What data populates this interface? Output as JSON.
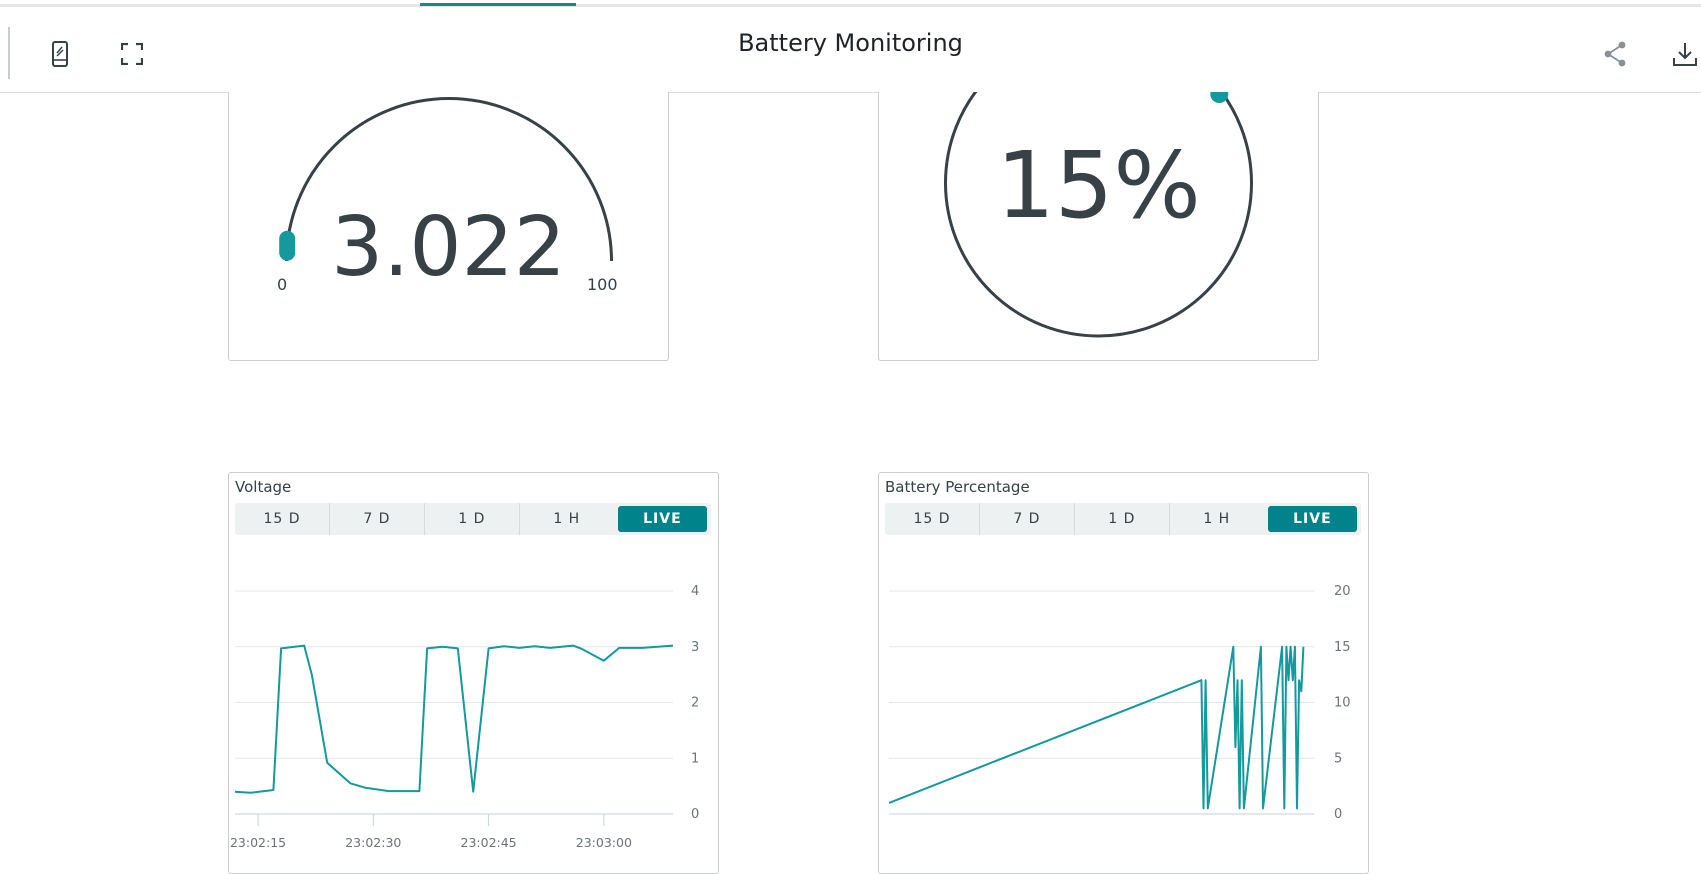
{
  "header": {
    "title": "Battery Monitoring",
    "icons": [
      "mobile-view-icon",
      "fullscreen-icon",
      "share-icon",
      "download-icon"
    ]
  },
  "gauge": {
    "value": "3.022",
    "min_label": "0",
    "max_label": "100",
    "level_fraction": 0.03
  },
  "percentage": {
    "value": "15%",
    "level_fraction": 0.15
  },
  "tabs": [
    "15 D",
    "7 D",
    "1 D",
    "1 H",
    "LIVE"
  ],
  "colors": {
    "accent": "#13999e",
    "live_tab": "#00838a",
    "text": "#374146"
  },
  "chart_data": [
    {
      "type": "line",
      "title": "Voltage",
      "ylim": [
        0,
        4
      ],
      "yticks": [
        "4",
        "3",
        "2",
        "1",
        "0"
      ],
      "xticks": [
        "23:02:15",
        "23:02:30",
        "23:02:45",
        "23:03:00"
      ],
      "x_start": "23:02:12",
      "x_end": "23:03:09",
      "series": [
        {
          "points": [
            [
              "23:02:12",
              0.4
            ],
            [
              "23:02:14",
              0.38
            ],
            [
              "23:02:17",
              0.43
            ],
            [
              "23:02:18",
              2.97
            ],
            [
              "23:02:21",
              3.02
            ],
            [
              "23:02:22",
              2.5
            ],
            [
              "23:02:24",
              0.92
            ],
            [
              "23:02:27",
              0.55
            ],
            [
              "23:02:29",
              0.47
            ],
            [
              "23:02:32",
              0.41
            ],
            [
              "23:02:36",
              0.41
            ],
            [
              "23:02:37",
              2.97
            ],
            [
              "23:02:39",
              3.0
            ],
            [
              "23:02:41",
              2.97
            ],
            [
              "23:02:43",
              0.4
            ],
            [
              "23:02:45",
              2.97
            ],
            [
              "23:02:47",
              3.01
            ],
            [
              "23:02:49",
              2.98
            ],
            [
              "23:02:51",
              3.01
            ],
            [
              "23:02:53",
              2.98
            ],
            [
              "23:02:56",
              3.02
            ],
            [
              "23:02:57",
              2.97
            ],
            [
              "23:03:00",
              2.75
            ],
            [
              "23:03:02",
              2.98
            ],
            [
              "23:03:05",
              2.98
            ],
            [
              "23:03:09",
              3.02
            ]
          ]
        }
      ]
    },
    {
      "type": "line",
      "title": "Battery Percentage",
      "ylim": [
        0,
        20
      ],
      "yticks": [
        "20",
        "15",
        "10",
        "5",
        "0"
      ],
      "x_range": [
        0,
        100
      ],
      "series": [
        {
          "points": [
            [
              0,
              1
            ],
            [
              73.5,
              12
            ],
            [
              74,
              0.5
            ],
            [
              74.5,
              12
            ],
            [
              75,
              0.5
            ],
            [
              81,
              15
            ],
            [
              81.5,
              6
            ],
            [
              82,
              12
            ],
            [
              82.5,
              0.5
            ],
            [
              83,
              12
            ],
            [
              83.5,
              0.5
            ],
            [
              87.5,
              15
            ],
            [
              88,
              0.5
            ],
            [
              92.5,
              15
            ],
            [
              93,
              0.5
            ],
            [
              93.5,
              15
            ],
            [
              94,
              12
            ],
            [
              94.5,
              15
            ],
            [
              95,
              12
            ],
            [
              95.5,
              15
            ],
            [
              96,
              0.5
            ],
            [
              96.5,
              12
            ],
            [
              97,
              11
            ],
            [
              97.5,
              15
            ]
          ]
        }
      ]
    }
  ]
}
